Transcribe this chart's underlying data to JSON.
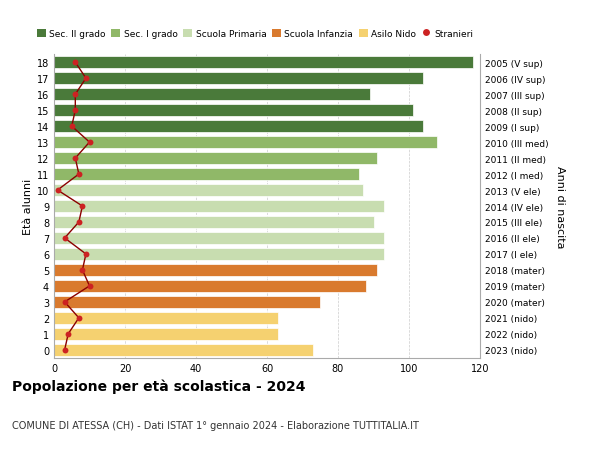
{
  "ages": [
    0,
    1,
    2,
    3,
    4,
    5,
    6,
    7,
    8,
    9,
    10,
    11,
    12,
    13,
    14,
    15,
    16,
    17,
    18
  ],
  "bar_values": [
    73,
    63,
    63,
    75,
    88,
    91,
    93,
    93,
    90,
    93,
    87,
    86,
    91,
    108,
    104,
    101,
    89,
    104,
    118
  ],
  "stranieri": [
    3,
    4,
    7,
    3,
    10,
    8,
    9,
    3,
    7,
    8,
    1,
    7,
    6,
    10,
    5,
    6,
    6,
    9,
    6
  ],
  "right_labels": [
    "2023 (nido)",
    "2022 (nido)",
    "2021 (nido)",
    "2020 (mater)",
    "2019 (mater)",
    "2018 (mater)",
    "2017 (I ele)",
    "2016 (II ele)",
    "2015 (III ele)",
    "2014 (IV ele)",
    "2013 (V ele)",
    "2012 (I med)",
    "2011 (II med)",
    "2010 (III med)",
    "2009 (I sup)",
    "2008 (II sup)",
    "2007 (III sup)",
    "2006 (IV sup)",
    "2005 (V sup)"
  ],
  "bar_colors": [
    "#f5d170",
    "#f5d170",
    "#f5d170",
    "#d97a2e",
    "#d97a2e",
    "#d97a2e",
    "#c8ddb0",
    "#c8ddb0",
    "#c8ddb0",
    "#c8ddb0",
    "#c8ddb0",
    "#90b868",
    "#90b868",
    "#90b868",
    "#4a7a3a",
    "#4a7a3a",
    "#4a7a3a",
    "#4a7a3a",
    "#4a7a3a"
  ],
  "legend_labels": [
    "Sec. II grado",
    "Sec. I grado",
    "Scuola Primaria",
    "Scuola Infanzia",
    "Asilo Nido",
    "Stranieri"
  ],
  "legend_colors": [
    "#4a7a3a",
    "#90b868",
    "#c8ddb0",
    "#d97a2e",
    "#f5d170",
    "#cc2222"
  ],
  "ylabel": "Età alunni",
  "ylabel_right": "Anni di nascita",
  "title": "Popolazione per età scolastica - 2024",
  "subtitle": "COMUNE DI ATESSA (CH) - Dati ISTAT 1° gennaio 2024 - Elaborazione TUTTITALIA.IT",
  "xlim": [
    0,
    120
  ],
  "xticks": [
    0,
    20,
    40,
    60,
    80,
    100,
    120
  ],
  "bg_color": "#ffffff",
  "bar_height": 0.78,
  "grid_color": "#cccccc"
}
